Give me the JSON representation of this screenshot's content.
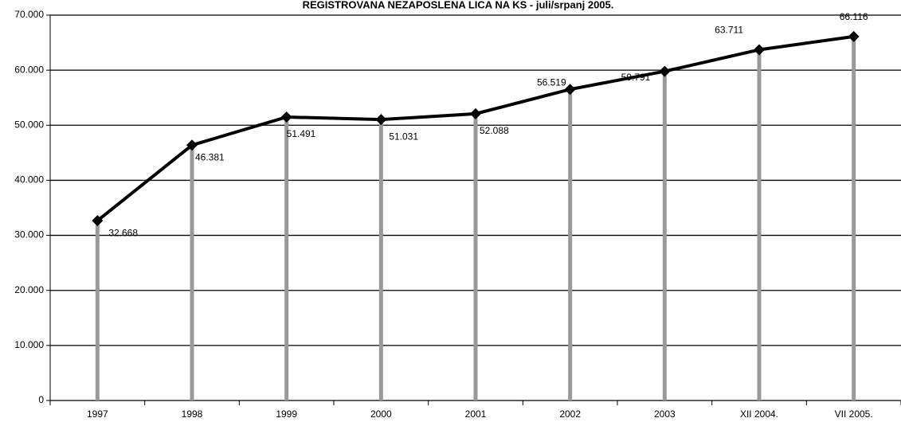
{
  "chart_data": {
    "type": "line",
    "title": "REGISTROVANA NEZAPOSLENA LICA NA KS - juli/srpanj 2005.",
    "categories": [
      "1997",
      "1998",
      "1999",
      "2000",
      "2001",
      "2002",
      "2003",
      "XII 2004.",
      "VII 2005."
    ],
    "series": [
      {
        "name": "Registrovana nezaposlena lica",
        "color": "#000000",
        "values": [
          32668,
          46381,
          51491,
          51031,
          52088,
          56519,
          59791,
          63711,
          66116
        ],
        "value_labels": [
          "32.668",
          "46.381",
          "51.491",
          "51.031",
          "52.088",
          "56.519",
          "59.791",
          "63.711",
          "66.116"
        ]
      }
    ],
    "drop_line_color": "#999999",
    "ylim": [
      0,
      70000
    ],
    "yticks": [
      0,
      {
        "value": 10000,
        "label": "10.000"
      },
      {
        "value": 20000,
        "label": "20.000"
      },
      {
        "value": 30000,
        "label": "30.000"
      },
      {
        "value": 40000,
        "label": "40.000"
      },
      {
        "value": 50000,
        "label": "50.000"
      },
      {
        "value": 60000,
        "label": "60.000"
      },
      {
        "value": 70000,
        "label": "70.000"
      }
    ],
    "grid": true
  }
}
